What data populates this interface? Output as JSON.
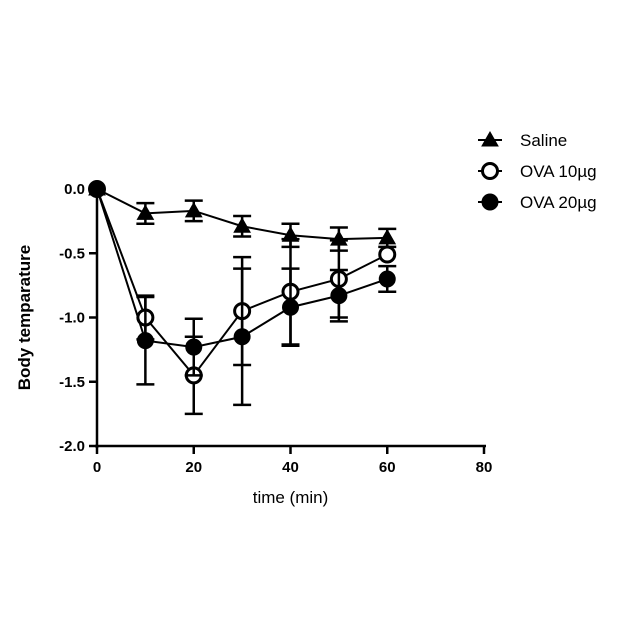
{
  "chart_data": {
    "type": "line",
    "title": "",
    "xlabel": "time (min)",
    "ylabel": "Body temparature",
    "xlim": [
      0,
      80
    ],
    "ylim": [
      -2.0,
      0.0
    ],
    "xticks": [
      0,
      20,
      40,
      60,
      80
    ],
    "yticks": [
      0.0,
      -0.5,
      -1.0,
      -1.5,
      -2.0
    ],
    "xtick_labels": [
      "0",
      "20",
      "40",
      "60",
      "80"
    ],
    "ytick_labels": [
      "0.0",
      "-0.5",
      "-1.0",
      "-1.5",
      "-2.0"
    ],
    "grid": false,
    "legend_position": "top-right",
    "series": [
      {
        "name": "Saline",
        "marker": "triangle-filled",
        "x": [
          0,
          10,
          20,
          30,
          40,
          50,
          60
        ],
        "y": [
          0.0,
          -0.19,
          -0.17,
          -0.29,
          -0.36,
          -0.39,
          -0.38
        ],
        "error": [
          0.0,
          0.08,
          0.08,
          0.08,
          0.09,
          0.09,
          0.07
        ]
      },
      {
        "name": "OVA 10µg",
        "marker": "circle-open",
        "x": [
          0,
          10,
          20,
          30,
          40,
          50,
          60
        ],
        "y": [
          0.0,
          -1.0,
          -1.45,
          -0.95,
          -0.8,
          -0.7,
          -0.51
        ],
        "error": [
          0.0,
          0.17,
          0.3,
          0.42,
          0.41,
          0.3,
          0.0
        ]
      },
      {
        "name": "OVA 20µg",
        "marker": "circle-filled",
        "x": [
          0,
          10,
          20,
          30,
          40,
          50,
          60
        ],
        "y": [
          0.0,
          -1.18,
          -1.23,
          -1.15,
          -0.92,
          -0.83,
          -0.7
        ],
        "error": [
          0.0,
          0.34,
          0.22,
          0.53,
          0.3,
          0.2,
          0.1
        ]
      }
    ]
  }
}
